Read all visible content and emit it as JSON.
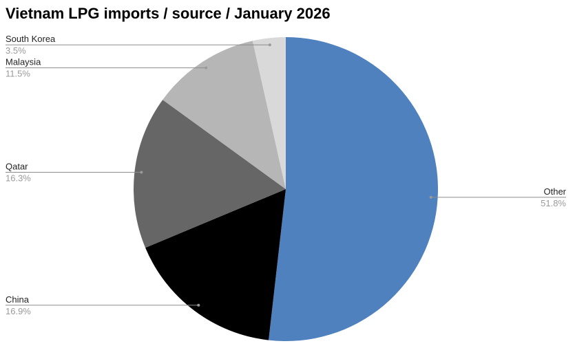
{
  "chart_data": {
    "type": "pie",
    "title": "Vietnam LPG imports / source / January 2026",
    "slices": [
      {
        "label": "Other",
        "value": 51.8,
        "display": "51.8%",
        "color": "#4e81bd"
      },
      {
        "label": "China",
        "value": 16.9,
        "display": "16.9%",
        "color": "#000000"
      },
      {
        "label": "Qatar",
        "value": 16.3,
        "display": "16.3%",
        "color": "#666666"
      },
      {
        "label": "Malaysia",
        "value": 11.5,
        "display": "11.5%",
        "color": "#b6b6b6"
      },
      {
        "label": "South Korea",
        "value": 3.5,
        "display": "3.5%",
        "color": "#d9d9d9"
      }
    ],
    "start_angle_deg": 0,
    "direction": "clockwise",
    "legend": "none",
    "label_style": "leader-lines"
  }
}
